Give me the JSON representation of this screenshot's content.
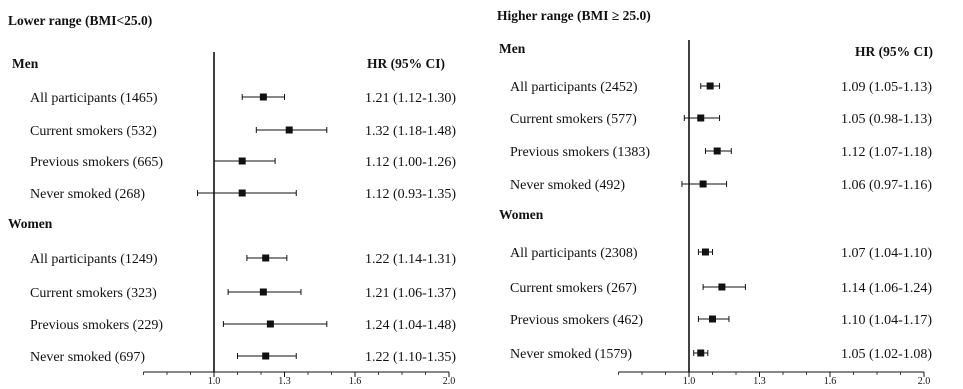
{
  "chart_data": [
    {
      "type": "forest",
      "title": "Lower range (BMI<25.0)",
      "hr_header": "HR (95% CI)",
      "reference_line": 1.0,
      "xlim": [
        0.7,
        2.0
      ],
      "xticks": [
        "1.0",
        "1.3",
        "1.6",
        "2.0"
      ],
      "groups": [
        {
          "name": "Men",
          "rows": [
            {
              "label": "All participants (1465)",
              "hr": 1.21,
              "lo": 1.12,
              "hi": 1.3,
              "hr_text": "1.21 (1.12-1.30)"
            },
            {
              "label": "Current smokers (532)",
              "hr": 1.32,
              "lo": 1.18,
              "hi": 1.48,
              "hr_text": "1.32 (1.18-1.48)"
            },
            {
              "label": "Previous smokers (665)",
              "hr": 1.12,
              "lo": 1.0,
              "hi": 1.26,
              "hr_text": "1.12 (1.00-1.26)"
            },
            {
              "label": "Never smoked (268)",
              "hr": 1.12,
              "lo": 0.93,
              "hi": 1.35,
              "hr_text": "1.12 (0.93-1.35)"
            }
          ]
        },
        {
          "name": "Women",
          "rows": [
            {
              "label": "All participants (1249)",
              "hr": 1.22,
              "lo": 1.14,
              "hi": 1.31,
              "hr_text": "1.22 (1.14-1.31)"
            },
            {
              "label": "Current smokers (323)",
              "hr": 1.21,
              "lo": 1.06,
              "hi": 1.37,
              "hr_text": "1.21 (1.06-1.37)"
            },
            {
              "label": "Previous smokers (229)",
              "hr": 1.24,
              "lo": 1.04,
              "hi": 1.48,
              "hr_text": "1.24 (1.04-1.48)"
            },
            {
              "label": "Never smoked (697)",
              "hr": 1.22,
              "lo": 1.1,
              "hi": 1.35,
              "hr_text": "1.22 (1.10-1.35)"
            }
          ]
        }
      ]
    },
    {
      "type": "forest",
      "title": "Higher range (BMI ≥ 25.0)",
      "hr_header": "HR (95% CI)",
      "reference_line": 1.0,
      "xlim": [
        0.7,
        2.0
      ],
      "xticks": [
        "1.0",
        "1.3",
        "1.6",
        "2.0"
      ],
      "groups": [
        {
          "name": "Men",
          "rows": [
            {
              "label": "All participants (2452)",
              "hr": 1.09,
              "lo": 1.05,
              "hi": 1.13,
              "hr_text": "1.09 (1.05-1.13)"
            },
            {
              "label": "Current smokers (577)",
              "hr": 1.05,
              "lo": 0.98,
              "hi": 1.13,
              "hr_text": "1.05 (0.98-1.13)"
            },
            {
              "label": "Previous smokers (1383)",
              "hr": 1.12,
              "lo": 1.07,
              "hi": 1.18,
              "hr_text": "1.12 (1.07-1.18)"
            },
            {
              "label": "Never smoked (492)",
              "hr": 1.06,
              "lo": 0.97,
              "hi": 1.16,
              "hr_text": "1.06 (0.97-1.16)"
            }
          ]
        },
        {
          "name": "Women",
          "rows": [
            {
              "label": "All participants (2308)",
              "hr": 1.07,
              "lo": 1.04,
              "hi": 1.1,
              "hr_text": "1.07 (1.04-1.10)"
            },
            {
              "label": "Current smokers (267)",
              "hr": 1.14,
              "lo": 1.06,
              "hi": 1.24,
              "hr_text": "1.14 (1.06-1.24)"
            },
            {
              "label": "Previous smokers (462)",
              "hr": 1.1,
              "lo": 1.04,
              "hi": 1.17,
              "hr_text": "1.10 (1.04-1.17)"
            },
            {
              "label": "Never smoked (1579)",
              "hr": 1.05,
              "lo": 1.02,
              "hi": 1.08,
              "hr_text": "1.05 (1.02-1.08)"
            }
          ]
        }
      ]
    }
  ]
}
